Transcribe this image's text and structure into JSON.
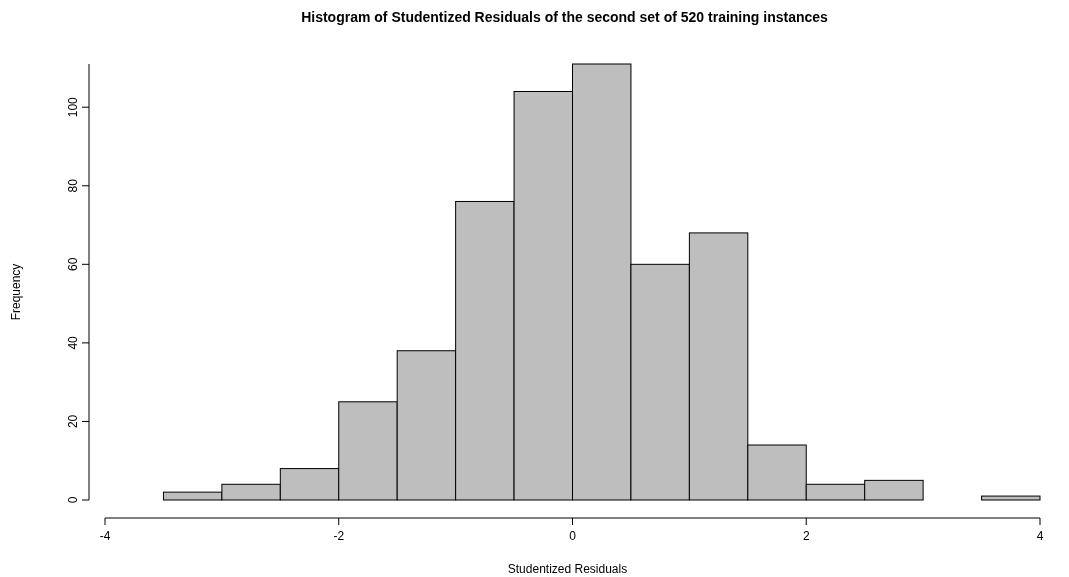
{
  "chart_data": {
    "type": "histogram",
    "title": "Histogram of Studentized Residuals of the second set of 520 training instances",
    "xlabel": "Studentized Residuals",
    "ylabel": "Frequency",
    "bins": [
      -3.5,
      -3,
      -2.5,
      -2,
      -1.5,
      -1,
      -0.5,
      0,
      0.5,
      1,
      1.5,
      2,
      2.5,
      3,
      3.5,
      4
    ],
    "values": [
      2,
      4,
      8,
      25,
      38,
      76,
      104,
      111,
      60,
      68,
      14,
      4,
      5,
      0,
      1
    ],
    "color": "#bebebe",
    "xlim": [
      -4,
      4
    ],
    "xticks": [
      -4,
      -2,
      0,
      2,
      4
    ],
    "ylim": [
      0,
      111
    ],
    "yticks": [
      0,
      20,
      40,
      60,
      80,
      100
    ],
    "grid": false
  }
}
